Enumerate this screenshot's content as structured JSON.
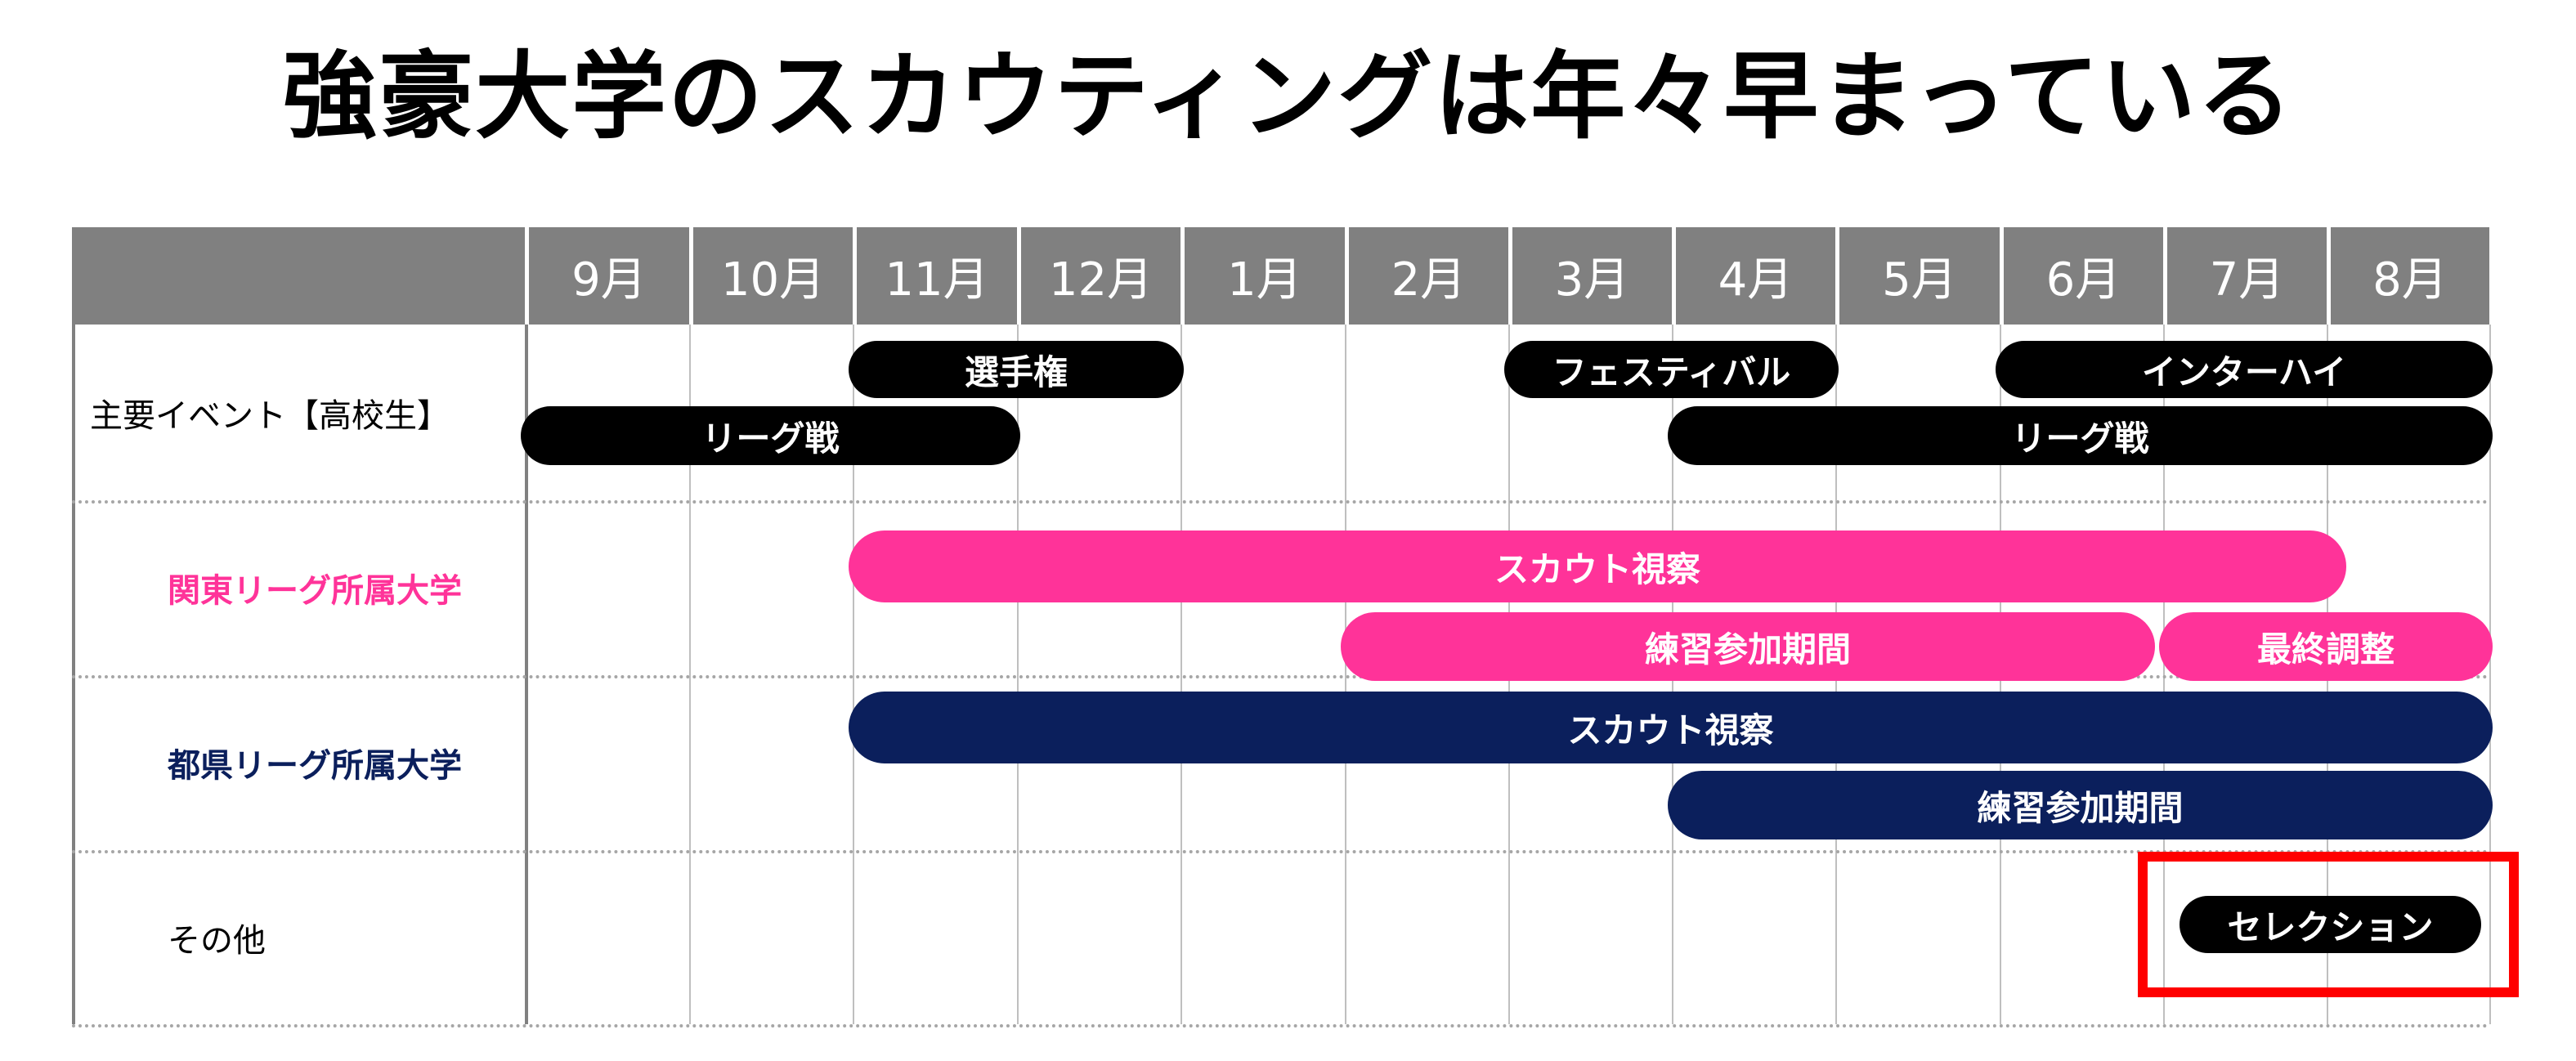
{
  "title": "強豪大学のスカウティングは年々早まっている",
  "months": [
    "9月",
    "10月",
    "11月",
    "12月",
    "1月",
    "2月",
    "3月",
    "4月",
    "5月",
    "6月",
    "7月",
    "8月"
  ],
  "rows": [
    {
      "label": "主要イベント【高校生】",
      "color": "#000000"
    },
    {
      "label": "関東リーグ所属大学",
      "color": "#ff3399"
    },
    {
      "label": "都県リーグ所属大学",
      "color": "#0b1f5c"
    },
    {
      "label": "その他",
      "color": "#000000"
    }
  ],
  "colors": {
    "black": "#000000",
    "pink": "#ff3399",
    "navy": "#0b1f5c",
    "highlight": "#ff0000",
    "header": "#808080"
  },
  "bars": [
    {
      "label": "選手権",
      "row": 0,
      "lane": 0,
      "start": "11月",
      "end": "12月",
      "color": "black"
    },
    {
      "label": "フェスティバル",
      "row": 0,
      "lane": 0,
      "start": "3月",
      "end": "4月",
      "color": "black"
    },
    {
      "label": "インターハイ",
      "row": 0,
      "lane": 0,
      "start": "6月",
      "end": "8月",
      "color": "black"
    },
    {
      "label": "リーグ戦",
      "row": 0,
      "lane": 1,
      "start": "9月",
      "end": "11月",
      "color": "black"
    },
    {
      "label": "リーグ戦",
      "row": 0,
      "lane": 1,
      "start": "4月",
      "end": "8月",
      "color": "black"
    },
    {
      "label": "スカウト視察",
      "row": 1,
      "lane": 0,
      "start": "11月",
      "end": "8月",
      "color": "pink"
    },
    {
      "label": "練習参加期間",
      "row": 1,
      "lane": 1,
      "start": "2月",
      "end": "6月",
      "color": "pink"
    },
    {
      "label": "最終調整",
      "row": 1,
      "lane": 1,
      "start": "7月",
      "end": "8月",
      "color": "pink"
    },
    {
      "label": "スカウト視察",
      "row": 2,
      "lane": 0,
      "start": "11月",
      "end": "8月",
      "color": "navy"
    },
    {
      "label": "練習参加期間",
      "row": 2,
      "lane": 1,
      "start": "4月",
      "end": "8月",
      "color": "navy"
    },
    {
      "label": "セレクション",
      "row": 3,
      "lane": 0,
      "start": "8月",
      "end": "8月",
      "color": "black"
    }
  ]
}
